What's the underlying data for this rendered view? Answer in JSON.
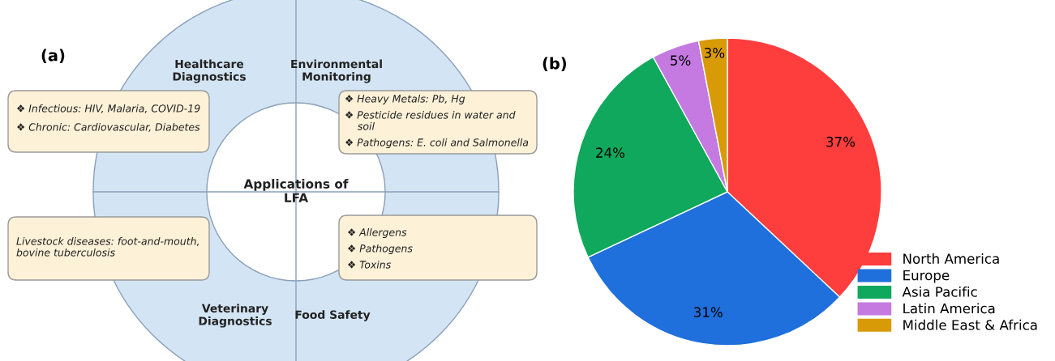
{
  "chart_data": [
    {
      "type": "other",
      "title": "(a)",
      "annotations": [
        "Applications of\nLFA",
        "Healthcare\nDiagnostics",
        "Environmental\nMonitoring",
        "Veterinary\nDiagnostics",
        "Food Safety",
        "❖ Infectious: HIV, Malaria, COVID-19",
        "❖ Chronic: Cardiovascular, Diabetes",
        "❖ Heavy Metals: Pb, Hg",
        "❖ Pesticide residues in water and\n    soil",
        "❖ Pathogens: E. coli and Salmonella",
        "Livestock diseases: foot-and-mouth,\nbovine tuberculosis",
        "❖ Allergens",
        "❖ Pathogens",
        "❖ Toxins"
      ]
    },
    {
      "type": "pie",
      "title": "(b)",
      "categories": [
        "North America",
        "Europe",
        "Asia Pacific",
        "Latin America",
        "Middle East & Africa"
      ],
      "values": [
        37,
        31,
        24,
        5,
        3
      ],
      "colors": [
        "#fe3d3d",
        "#1f6fdc",
        "#10a85c",
        "#c47ae0",
        "#d99a08"
      ],
      "value_labels": [
        "37%",
        "31%",
        "24%",
        "5%",
        "3%"
      ],
      "legend": "bottom right"
    }
  ]
}
